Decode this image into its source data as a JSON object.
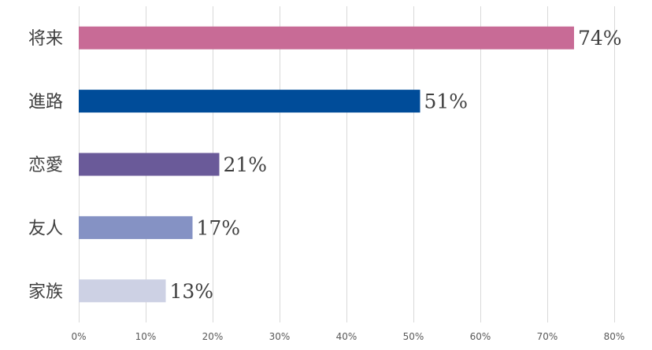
{
  "chart_data": {
    "type": "bar",
    "orientation": "horizontal",
    "categories": [
      "将来",
      "進路",
      "恋愛",
      "友人",
      "家族"
    ],
    "values": [
      74,
      51,
      21,
      17,
      13
    ],
    "value_labels": [
      "74%",
      "51%",
      "21%",
      "17%",
      "13%"
    ],
    "bar_colors": [
      "#c86b96",
      "#004c99",
      "#6a5a99",
      "#8592c4",
      "#cdd1e4"
    ],
    "xlim": [
      0,
      80
    ],
    "xticks": [
      0,
      10,
      20,
      30,
      40,
      50,
      60,
      70,
      80
    ],
    "xtick_labels": [
      "0%",
      "10%",
      "20%",
      "30%",
      "40%",
      "50%",
      "60%",
      "70%",
      "80%"
    ],
    "grid": true,
    "title": "",
    "xlabel": "",
    "ylabel": ""
  }
}
